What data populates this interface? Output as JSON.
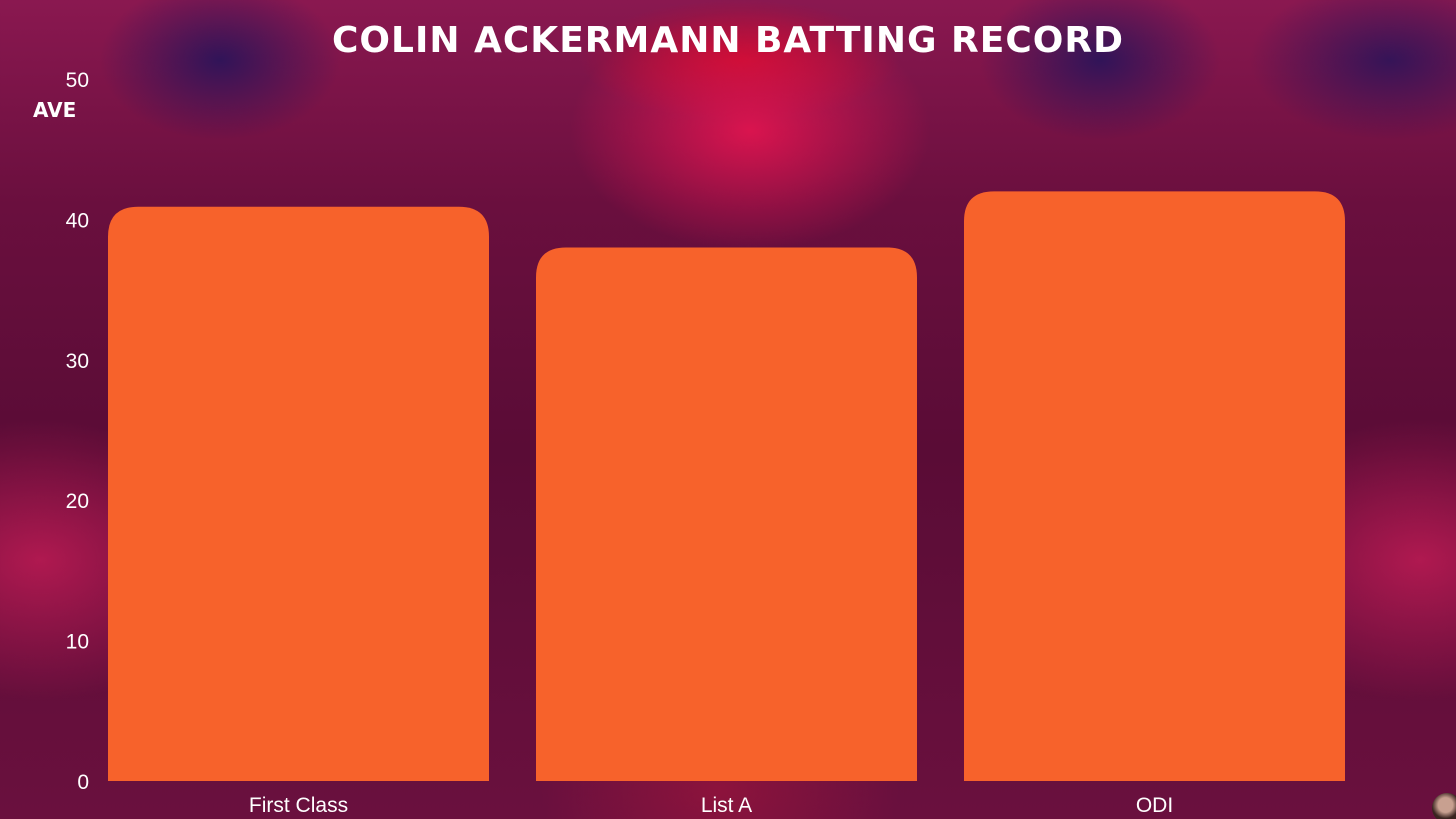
{
  "chart_data": {
    "type": "bar",
    "title": "COLIN ACKERMANN BATTING RECORD",
    "xlabel": "",
    "ylabel": "AVE",
    "categories": [
      "First Class",
      "List A",
      "ODI"
    ],
    "values": [
      40.9,
      38.0,
      42.0
    ],
    "ylim": [
      0,
      50
    ],
    "yticks": [
      "0",
      "10",
      "20",
      "30",
      "40",
      "50"
    ],
    "grid": false,
    "bar_color": "#f7622b"
  }
}
